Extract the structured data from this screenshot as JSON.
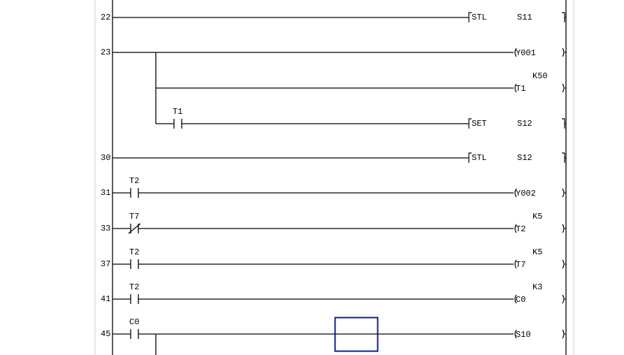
{
  "colors": {
    "rung": "#000000",
    "cursor": "#0a1a9c",
    "gutter": "#d8d8d8"
  },
  "rungs": [
    {
      "step": "22",
      "contacts": [],
      "output": {
        "kind": "instruction",
        "op": "STL",
        "operand": "S11"
      }
    },
    {
      "step": "23",
      "contacts": [],
      "output": {
        "kind": "coil",
        "device": "Y001"
      },
      "branches": [
        {
          "contacts": [],
          "output": {
            "kind": "coil",
            "device": "T1",
            "setting": "K50"
          }
        },
        {
          "contacts": [
            {
              "device": "T1",
              "type": "NO"
            }
          ],
          "output": {
            "kind": "instruction",
            "op": "SET",
            "operand": "S12"
          }
        }
      ]
    },
    {
      "step": "30",
      "contacts": [],
      "output": {
        "kind": "instruction",
        "op": "STL",
        "operand": "S12"
      }
    },
    {
      "step": "31",
      "contacts": [
        {
          "device": "T2",
          "type": "NO"
        }
      ],
      "output": {
        "kind": "coil",
        "device": "Y002"
      }
    },
    {
      "step": "33",
      "contacts": [
        {
          "device": "T7",
          "type": "NC"
        }
      ],
      "output": {
        "kind": "coil",
        "device": "T2",
        "setting": "K5"
      }
    },
    {
      "step": "37",
      "contacts": [
        {
          "device": "T2",
          "type": "NO"
        }
      ],
      "output": {
        "kind": "coil",
        "device": "T7",
        "setting": "K5"
      }
    },
    {
      "step": "41",
      "contacts": [
        {
          "device": "T2",
          "type": "NO"
        }
      ],
      "output": {
        "kind": "coil",
        "device": "C0",
        "setting": "K3"
      }
    },
    {
      "step": "45",
      "contacts": [
        {
          "device": "C0",
          "type": "NO"
        }
      ],
      "output": {
        "kind": "coil",
        "device": "S10"
      },
      "continues_below": true
    }
  ]
}
